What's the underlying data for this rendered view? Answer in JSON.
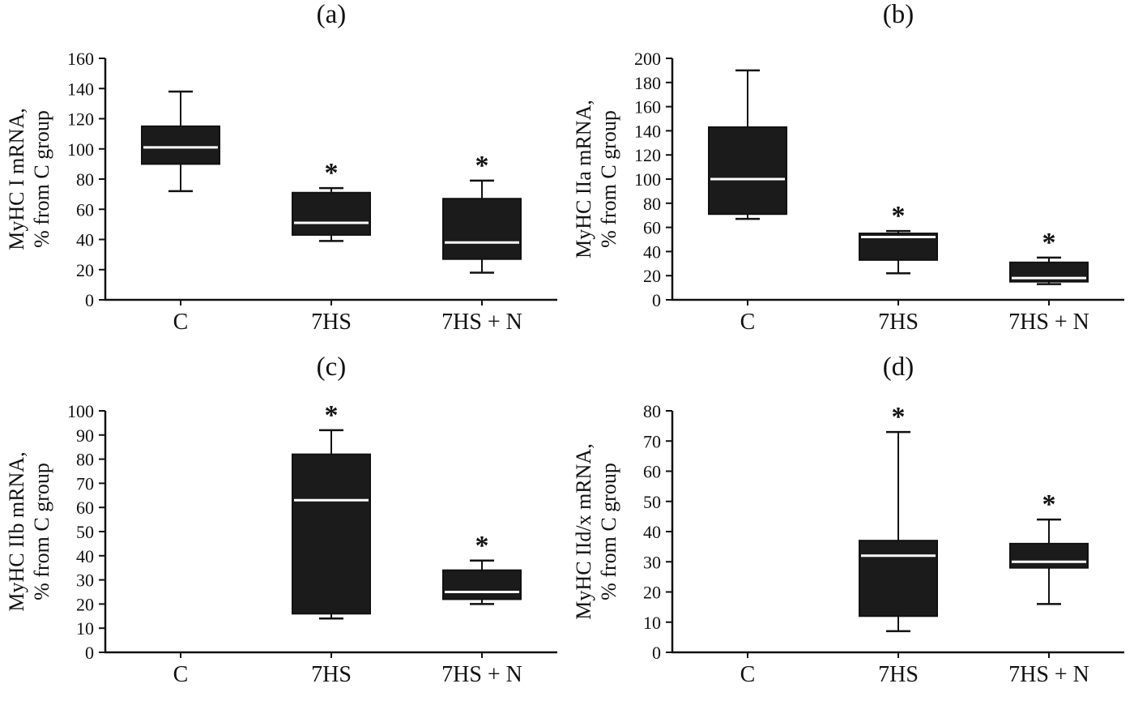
{
  "figure": {
    "background": "#ffffff",
    "text_color": "#111111",
    "box_fill": "#1b1b1b",
    "box_stroke": "#111111",
    "median_color": "#ffffff"
  },
  "chart_data": [
    {
      "id": "a",
      "type": "box",
      "title": "(a)",
      "ylabel_line1": "MyHC I mRNA,",
      "ylabel_line2": "% from C group",
      "ylim": [
        0,
        160
      ],
      "ytick_step": 20,
      "categories": [
        "C",
        "7HS",
        "7HS + N"
      ],
      "boxes": [
        {
          "low": 72,
          "q1": 90,
          "median": 101,
          "q3": 115,
          "high": 138,
          "annotation": null
        },
        {
          "low": 39,
          "q1": 43,
          "median": 51,
          "q3": 71,
          "high": 74,
          "annotation": "*"
        },
        {
          "low": 18,
          "q1": 27,
          "median": 38,
          "q3": 67,
          "high": 79,
          "annotation": "*"
        }
      ]
    },
    {
      "id": "b",
      "type": "box",
      "title": "(b)",
      "ylabel_line1": "MyHC IIa mRNA,",
      "ylabel_line2": "% from C group",
      "ylim": [
        0,
        200
      ],
      "ytick_step": 20,
      "categories": [
        "C",
        "7HS",
        "7HS + N"
      ],
      "boxes": [
        {
          "low": 67,
          "q1": 71,
          "median": 100,
          "q3": 143,
          "high": 190,
          "annotation": null
        },
        {
          "low": 22,
          "q1": 33,
          "median": 52,
          "q3": 55,
          "high": 57,
          "annotation": "*"
        },
        {
          "low": 13,
          "q1": 15,
          "median": 18,
          "q3": 31,
          "high": 35,
          "annotation": "*"
        }
      ]
    },
    {
      "id": "c",
      "type": "box",
      "title": "(c)",
      "ylabel_line1": "MyHC IIb mRNA,",
      "ylabel_line2": "% from C group",
      "ylim": [
        0,
        100
      ],
      "ytick_step": 10,
      "categories": [
        "C",
        "7HS",
        "7HS + N"
      ],
      "boxes": [
        null,
        {
          "low": 14,
          "q1": 16,
          "median": 63,
          "q3": 82,
          "high": 92,
          "annotation": "*"
        },
        {
          "low": 20,
          "q1": 22,
          "median": 25,
          "q3": 34,
          "high": 38,
          "annotation": "*"
        }
      ]
    },
    {
      "id": "d",
      "type": "box",
      "title": "(d)",
      "ylabel_line1": "MyHC IId/x mRNA,",
      "ylabel_line2": "% from C group",
      "ylim": [
        0,
        80
      ],
      "ytick_step": 10,
      "categories": [
        "C",
        "7HS",
        "7HS + N"
      ],
      "boxes": [
        null,
        {
          "low": 7,
          "q1": 12,
          "median": 32,
          "q3": 37,
          "high": 73,
          "annotation": "*"
        },
        {
          "low": 16,
          "q1": 28,
          "median": 30,
          "q3": 36,
          "high": 44,
          "annotation": "*"
        }
      ]
    }
  ]
}
